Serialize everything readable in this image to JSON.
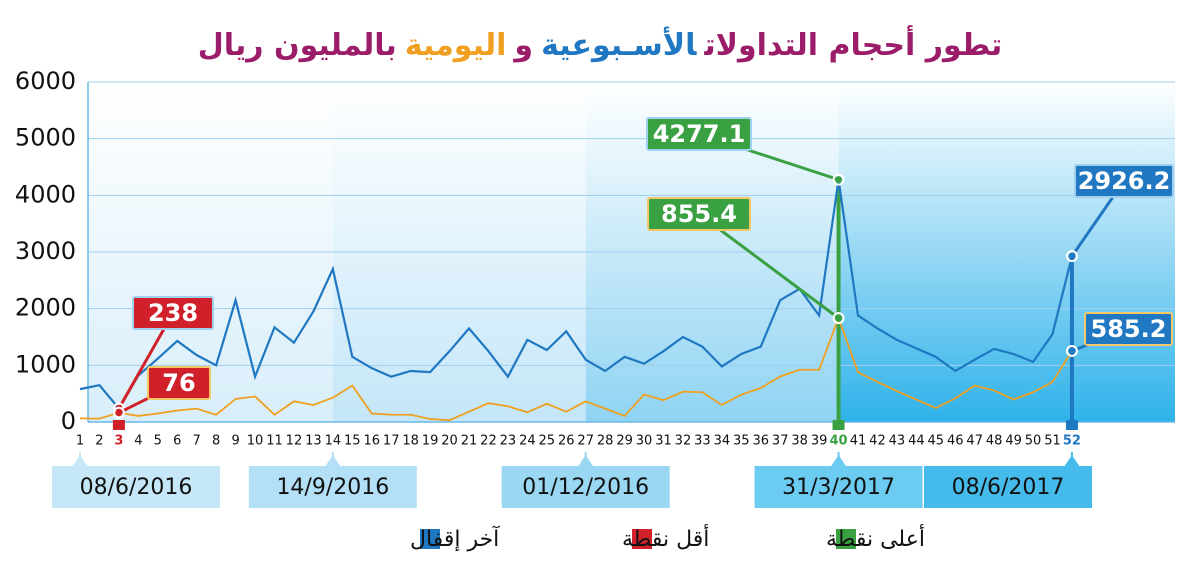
{
  "chart_data": {
    "type": "line",
    "title_parts": [
      "تطور أحجام التداولات",
      "الأسـبوعية",
      "و",
      "اليومية",
      "بالمليون ريال"
    ],
    "title_colors": [
      "#9b1d6a",
      "#1f78c1",
      "#9b1d6a",
      "#f0a020",
      "#9b1d6a"
    ],
    "categories": [
      "1",
      "2",
      "3",
      "4",
      "5",
      "6",
      "7",
      "8",
      "9",
      "10",
      "11",
      "12",
      "13",
      "14",
      "15",
      "16",
      "17",
      "18",
      "19",
      "20",
      "21",
      "22",
      "23",
      "24",
      "25",
      "26",
      "27",
      "28",
      "29",
      "30",
      "31",
      "32",
      "33",
      "34",
      "35",
      "36",
      "37",
      "38",
      "39",
      "40",
      "41",
      "42",
      "43",
      "44",
      "45",
      "46",
      "47",
      "48",
      "49",
      "50",
      "51",
      "52"
    ],
    "series": [
      {
        "color": "#1f78c1",
        "values": [
          580,
          650,
          238,
          820,
          1120,
          1430,
          1180,
          1000,
          2150,
          800,
          1670,
          1400,
          1950,
          2700,
          1150,
          950,
          800,
          900,
          880,
          1250,
          1650,
          1250,
          800,
          1450,
          1270,
          1600,
          1100,
          900,
          1150,
          1030,
          1250,
          1500,
          1330,
          980,
          1200,
          1330,
          2150,
          2350,
          1880,
          4277.1,
          1880,
          1650,
          1450,
          1300,
          1150,
          900,
          1100,
          1290,
          1200,
          1060,
          1550,
          2926.2
        ]
      },
      {
        "color": "#f0a020",
        "axis": "y2",
        "values": [
          30,
          28,
          76,
          50,
          70,
          95,
          110,
          60,
          190,
          210,
          60,
          170,
          140,
          200,
          300,
          70,
          60,
          60,
          25,
          15,
          85,
          155,
          130,
          80,
          150,
          85,
          170,
          110,
          50,
          225,
          180,
          250,
          245,
          140,
          225,
          280,
          375,
          430,
          430,
          855.4,
          410,
          330,
          255,
          185,
          115,
          195,
          300,
          260,
          185,
          245,
          330,
          585.2
        ]
      }
    ],
    "ylim": [
      0,
      6000
    ],
    "yticks": [
      0,
      1000,
      2000,
      3000,
      4000,
      5000,
      6000
    ],
    "y2lim": [
      0,
      2800
    ],
    "grid": true,
    "period_labels": [
      {
        "at": "1",
        "label": "08/6/2016"
      },
      {
        "at": "14",
        "label": "14/9/2016"
      },
      {
        "at": "27",
        "label": "01/12/2016"
      },
      {
        "at": "40",
        "label": "31/3/2017"
      },
      {
        "at": "52",
        "label": "08/6/2017"
      }
    ],
    "legend": [
      {
        "label": "آخر إقفال",
        "color": "#1f78c1"
      },
      {
        "label": "أقل نقطة",
        "color": "#d0202a"
      },
      {
        "label": "أعلى نقطة",
        "color": "#3aa142"
      }
    ]
  }
}
